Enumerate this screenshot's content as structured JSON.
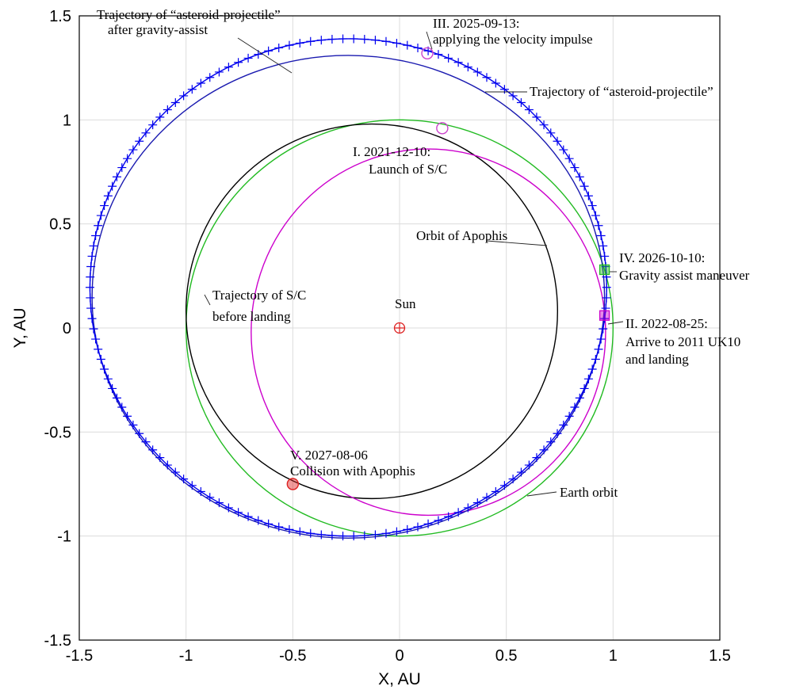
{
  "chart_data": {
    "type": "line",
    "xlabel": "X, AU",
    "ylabel": "Y, AU",
    "xlim": [
      -1.5,
      1.5
    ],
    "ylim": [
      -1.5,
      1.5
    ],
    "xticks": [
      -1.5,
      -1,
      -0.5,
      0,
      0.5,
      1,
      1.5
    ],
    "yticks": [
      -1.5,
      -1,
      -0.5,
      0,
      0.5,
      1,
      1.5
    ],
    "xtick_labels": [
      "-1.5",
      "-1",
      "-0.5",
      "0",
      "0.5",
      "1",
      "1.5"
    ],
    "ytick_labels": [
      "-1.5",
      "-1",
      "-0.5",
      "0",
      "0.5",
      "1",
      "1.5"
    ],
    "grid": true,
    "series": [
      {
        "name": "Earth orbit",
        "color": "#22bb22",
        "shape": "ellipse",
        "center": [
          0.0,
          0.0
        ],
        "rx": 1.0,
        "ry": 1.0,
        "marker": "none"
      },
      {
        "name": "Orbit of Apophis",
        "color": "#000000",
        "shape": "ellipse",
        "center": [
          -0.13,
          0.08
        ],
        "rx": 0.87,
        "ry": 0.9,
        "marker": "none"
      },
      {
        "name": "Trajectory of S/C before landing",
        "color": "#cc00cc",
        "shape": "ellipse",
        "center": [
          0.135,
          -0.02
        ],
        "rx": 0.83,
        "ry": 0.88,
        "marker": "none"
      },
      {
        "name": "Trajectory of “asteroid-projectile” after gravity-assist",
        "color": "#1a1ab0",
        "shape": "ellipse",
        "center": [
          -0.24,
          0.15
        ],
        "rx": 1.2,
        "ry": 1.16,
        "marker": "none"
      },
      {
        "name": "Trajectory of “asteroid-projectile”",
        "color": "#0000ee",
        "shape": "ellipse",
        "center": [
          -0.24,
          0.195
        ],
        "rx": 1.21,
        "ry": 1.195,
        "marker": "plus"
      }
    ],
    "points": [
      {
        "id": "sun",
        "label": "Sun",
        "x": 0,
        "y": 0,
        "color": "#dd2222",
        "marker": "circle-plus"
      },
      {
        "id": "launch",
        "label": "I. 2021-12-10:",
        "label2": "Launch of S/C",
        "x": 0.2,
        "y": 0.96,
        "color": "#cc44cc",
        "marker": "circle"
      },
      {
        "id": "arrive",
        "label": "II. 2022-08-25:",
        "label2": "Arrive to 2011 UK10",
        "label3": "and landing",
        "x": 0.96,
        "y": 0.06,
        "color": "#cc00cc",
        "marker": "square"
      },
      {
        "id": "impulse",
        "label": "III. 2025-09-13:",
        "label2": "applying the velocity impulse",
        "x": 0.13,
        "y": 1.32,
        "color": "#cc44cc",
        "marker": "circle"
      },
      {
        "id": "gravity",
        "label": "IV. 2026-10-10:",
        "label2": "Gravity assist maneuver",
        "x": 0.96,
        "y": 0.28,
        "color": "#22bb22",
        "marker": "square"
      },
      {
        "id": "collision",
        "label": "V. 2027-08-06",
        "label2": "Collision with Apophis",
        "x": -0.5,
        "y": -0.75,
        "color": "#dd2222",
        "marker": "circle-fill"
      }
    ],
    "annotations": [
      {
        "text": "Trajectory of “asteroid-projectile”",
        "text2": "after gravity-assist",
        "x": -1.42,
        "y": 1.5
      },
      {
        "text": "Trajectory of “asteroid-projectile”",
        "x": 0.6,
        "y": 1.1
      },
      {
        "text": "Orbit of Apophis",
        "x": 0.08,
        "y": 0.44
      },
      {
        "text": "Trajectory of S/C",
        "text2": "before landing",
        "x": -0.88,
        "y": 0.14
      },
      {
        "text": "Earth orbit",
        "x": 0.74,
        "y": -0.78
      }
    ]
  }
}
